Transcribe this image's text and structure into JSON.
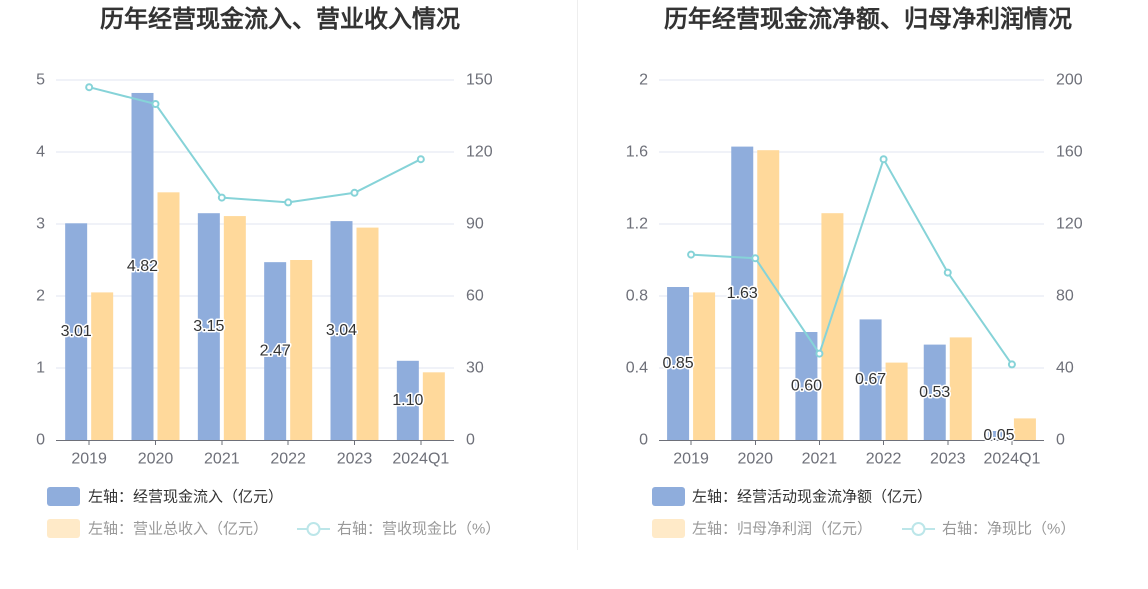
{
  "chart_data": [
    {
      "type": "bar",
      "title": "历年经营现金流入、营业收入情况",
      "categories": [
        "2019",
        "2020",
        "2021",
        "2022",
        "2023",
        "2024Q1"
      ],
      "y_left": {
        "min": 0,
        "max": 5,
        "ticks": [
          "0",
          "1",
          "2",
          "3",
          "4",
          "5"
        ]
      },
      "y_right": {
        "min": 0,
        "max": 150,
        "ticks": [
          "0",
          "30",
          "60",
          "90",
          "120",
          "150"
        ]
      },
      "grid": true,
      "legend_position": "bottom-left",
      "series": [
        {
          "name": "左轴：经营现金流入（亿元）",
          "type": "bar",
          "axis": "left",
          "color": "#8FADDC",
          "data_labels": true,
          "values": [
            3.01,
            4.82,
            3.15,
            2.47,
            3.04,
            1.1
          ]
        },
        {
          "name": "左轴：营业总收入（亿元）",
          "type": "bar",
          "axis": "left",
          "color": "#FFD99B",
          "data_labels": false,
          "values": [
            2.05,
            3.44,
            3.11,
            2.5,
            2.95,
            0.94
          ]
        },
        {
          "name": "右轴：营收现金比（%）",
          "type": "line",
          "axis": "right",
          "color": "#86D3D8",
          "data_labels": false,
          "values": [
            147,
            140,
            101,
            99,
            103,
            117
          ]
        }
      ]
    },
    {
      "type": "bar",
      "title": "历年经营现金流净额、归母净利润情况",
      "categories": [
        "2019",
        "2020",
        "2021",
        "2022",
        "2023",
        "2024Q1"
      ],
      "y_left": {
        "min": 0,
        "max": 2,
        "ticks": [
          "0",
          "0.4",
          "0.8",
          "1.2",
          "1.6",
          "2"
        ]
      },
      "y_right": {
        "min": 0,
        "max": 200,
        "ticks": [
          "0",
          "40",
          "80",
          "120",
          "160",
          "200"
        ]
      },
      "grid": true,
      "legend_position": "bottom-left",
      "series": [
        {
          "name": "左轴：经营活动现金流净额（亿元）",
          "type": "bar",
          "axis": "left",
          "color": "#8FADDC",
          "data_labels": true,
          "values": [
            0.85,
            1.63,
            0.6,
            0.67,
            0.53,
            0.05
          ]
        },
        {
          "name": "左轴：归母净利润（亿元）",
          "type": "bar",
          "axis": "left",
          "color": "#FFD99B",
          "data_labels": false,
          "values": [
            0.82,
            1.61,
            1.26,
            0.43,
            0.57,
            0.12
          ]
        },
        {
          "name": "右轴：净现比（%）",
          "type": "line",
          "axis": "right",
          "color": "#86D3D8",
          "data_labels": false,
          "values": [
            103,
            101,
            48,
            156,
            93,
            42
          ]
        }
      ]
    }
  ]
}
